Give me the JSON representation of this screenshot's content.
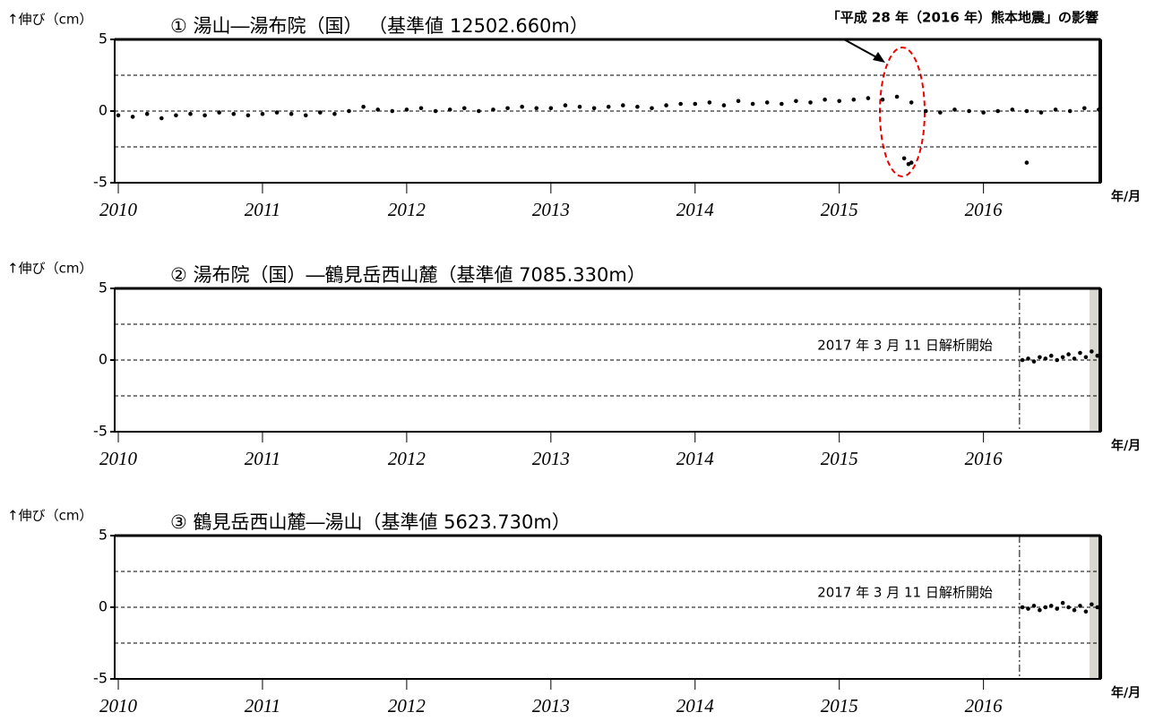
{
  "chart_data": [
    {
      "type": "scatter",
      "title": "① 湯山―湯布院（国） （基準値 12502.660m）",
      "y_label": "↑伸び（cm）",
      "x_unit": "年/月",
      "annotation": "「平成 28 年（2016 年）熊本地震」の影響",
      "xlim": [
        2009.975,
        2016.81
      ],
      "xticks": [
        2010,
        2011,
        2012,
        2013,
        2014,
        2015,
        2016
      ],
      "ylim": [
        -5,
        5
      ],
      "yticks": [
        -5,
        0,
        5
      ],
      "hlines": [
        -2.5,
        0,
        2.5
      ],
      "color": "#000000",
      "x": [
        2010.0,
        2010.1,
        2010.2,
        2010.3,
        2010.4,
        2010.5,
        2010.6,
        2010.7,
        2010.8,
        2010.9,
        2011.0,
        2011.1,
        2011.2,
        2011.3,
        2011.4,
        2011.5,
        2011.6,
        2011.7,
        2011.8,
        2011.9,
        2012.0,
        2012.1,
        2012.2,
        2012.3,
        2012.4,
        2012.5,
        2012.6,
        2012.7,
        2012.8,
        2012.9,
        2013.0,
        2013.1,
        2013.2,
        2013.3,
        2013.4,
        2013.5,
        2013.6,
        2013.7,
        2013.8,
        2013.9,
        2014.0,
        2014.1,
        2014.2,
        2014.3,
        2014.4,
        2014.5,
        2014.6,
        2014.7,
        2014.8,
        2014.9,
        2015.0,
        2015.1,
        2015.2,
        2015.3,
        2015.4,
        2015.5,
        2015.6,
        2015.7,
        2015.8,
        2015.9,
        2016.0,
        2016.1,
        2016.2,
        2016.3,
        2016.4,
        2016.5,
        2016.6,
        2016.7,
        2016.8,
        2015.45,
        2015.48,
        2015.5,
        2016.3
      ],
      "values": [
        -0.3,
        -0.4,
        -0.2,
        -0.5,
        -0.3,
        -0.2,
        -0.3,
        -0.1,
        -0.2,
        -0.3,
        -0.2,
        -0.1,
        -0.2,
        -0.3,
        -0.1,
        -0.2,
        0.0,
        0.3,
        0.1,
        0.0,
        0.1,
        0.2,
        0.0,
        0.1,
        0.2,
        0.0,
        0.1,
        0.2,
        0.3,
        0.2,
        0.2,
        0.4,
        0.3,
        0.2,
        0.3,
        0.4,
        0.3,
        0.2,
        0.4,
        0.5,
        0.5,
        0.6,
        0.4,
        0.7,
        0.5,
        0.6,
        0.5,
        0.7,
        0.6,
        0.8,
        0.7,
        0.8,
        0.9,
        0.8,
        1.0,
        0.6,
        0.0,
        -0.1,
        0.1,
        0.0,
        -0.1,
        0.0,
        0.1,
        0.0,
        -0.1,
        0.1,
        0.0,
        0.2,
        0.1,
        -3.3,
        -3.7,
        -3.6,
        -3.6
      ]
    },
    {
      "type": "scatter",
      "title": "② 湯布院（国）―鶴見岳西山麓（基準値 7085.330m）",
      "y_label": "↑伸び（cm）",
      "x_unit": "年/月",
      "annotation": "2017 年 3 月 11 日解析開始",
      "start_line_x": 2016.25,
      "xlim": [
        2009.975,
        2016.81
      ],
      "xticks": [
        2010,
        2011,
        2012,
        2013,
        2014,
        2015,
        2016
      ],
      "ylim": [
        -5,
        5
      ],
      "yticks": [
        -5,
        0,
        5
      ],
      "hlines": [
        -2.5,
        0,
        2.5
      ],
      "color": "#000000",
      "x": [
        2016.27,
        2016.31,
        2016.35,
        2016.39,
        2016.43,
        2016.47,
        2016.51,
        2016.55,
        2016.59,
        2016.63,
        2016.67,
        2016.71,
        2016.75,
        2016.79
      ],
      "values": [
        0.0,
        0.1,
        -0.1,
        0.2,
        0.1,
        0.3,
        0.0,
        0.2,
        0.4,
        0.1,
        0.5,
        0.2,
        0.6,
        0.3
      ]
    },
    {
      "type": "scatter",
      "title": "③ 鶴見岳西山麓―湯山（基準値 5623.730m）",
      "y_label": "↑伸び（cm）",
      "x_unit": "年/月",
      "annotation": "2017 年 3 月 11 日解析開始",
      "start_line_x": 2016.25,
      "xlim": [
        2009.975,
        2016.81
      ],
      "xticks": [
        2010,
        2011,
        2012,
        2013,
        2014,
        2015,
        2016
      ],
      "ylim": [
        -5,
        5
      ],
      "yticks": [
        -5,
        0,
        5
      ],
      "hlines": [
        -2.5,
        0,
        2.5
      ],
      "color": "#000000",
      "x": [
        2016.27,
        2016.31,
        2016.35,
        2016.39,
        2016.43,
        2016.47,
        2016.51,
        2016.55,
        2016.59,
        2016.63,
        2016.67,
        2016.71,
        2016.75,
        2016.79
      ],
      "values": [
        0.0,
        -0.1,
        0.1,
        -0.2,
        0.0,
        0.1,
        -0.1,
        0.3,
        0.0,
        -0.2,
        0.1,
        -0.3,
        0.2,
        0.0
      ]
    }
  ]
}
